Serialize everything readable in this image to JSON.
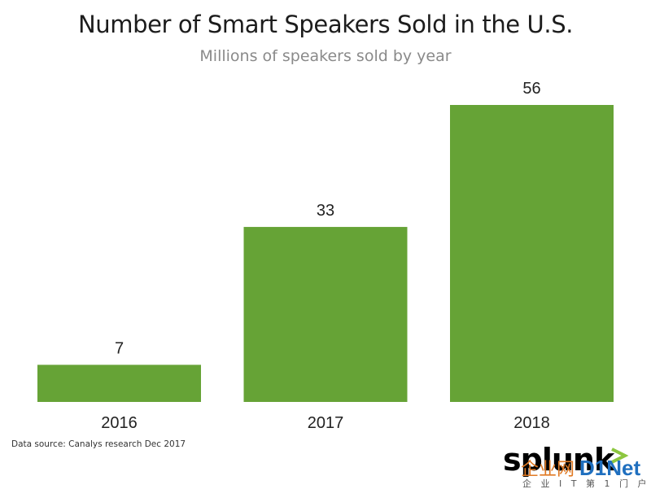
{
  "chart_data": {
    "type": "bar",
    "title": "Number of Smart Speakers Sold in the U.S.",
    "subtitle": "Millions of speakers sold by year",
    "categories": [
      "2016",
      "2017",
      "2018"
    ],
    "values": [
      7,
      33,
      56
    ],
    "data_labels": [
      "7",
      "33",
      "56"
    ],
    "ylim": [
      0,
      56
    ],
    "grid": false,
    "bar_color": "#66a336",
    "source_note": "Data source: Canalys research Dec 2017"
  },
  "branding": {
    "logo": "splunk>",
    "watermark_main": "企业网D1Net",
    "watermark_sub": "企 业 I T 第 1 门 户"
  }
}
